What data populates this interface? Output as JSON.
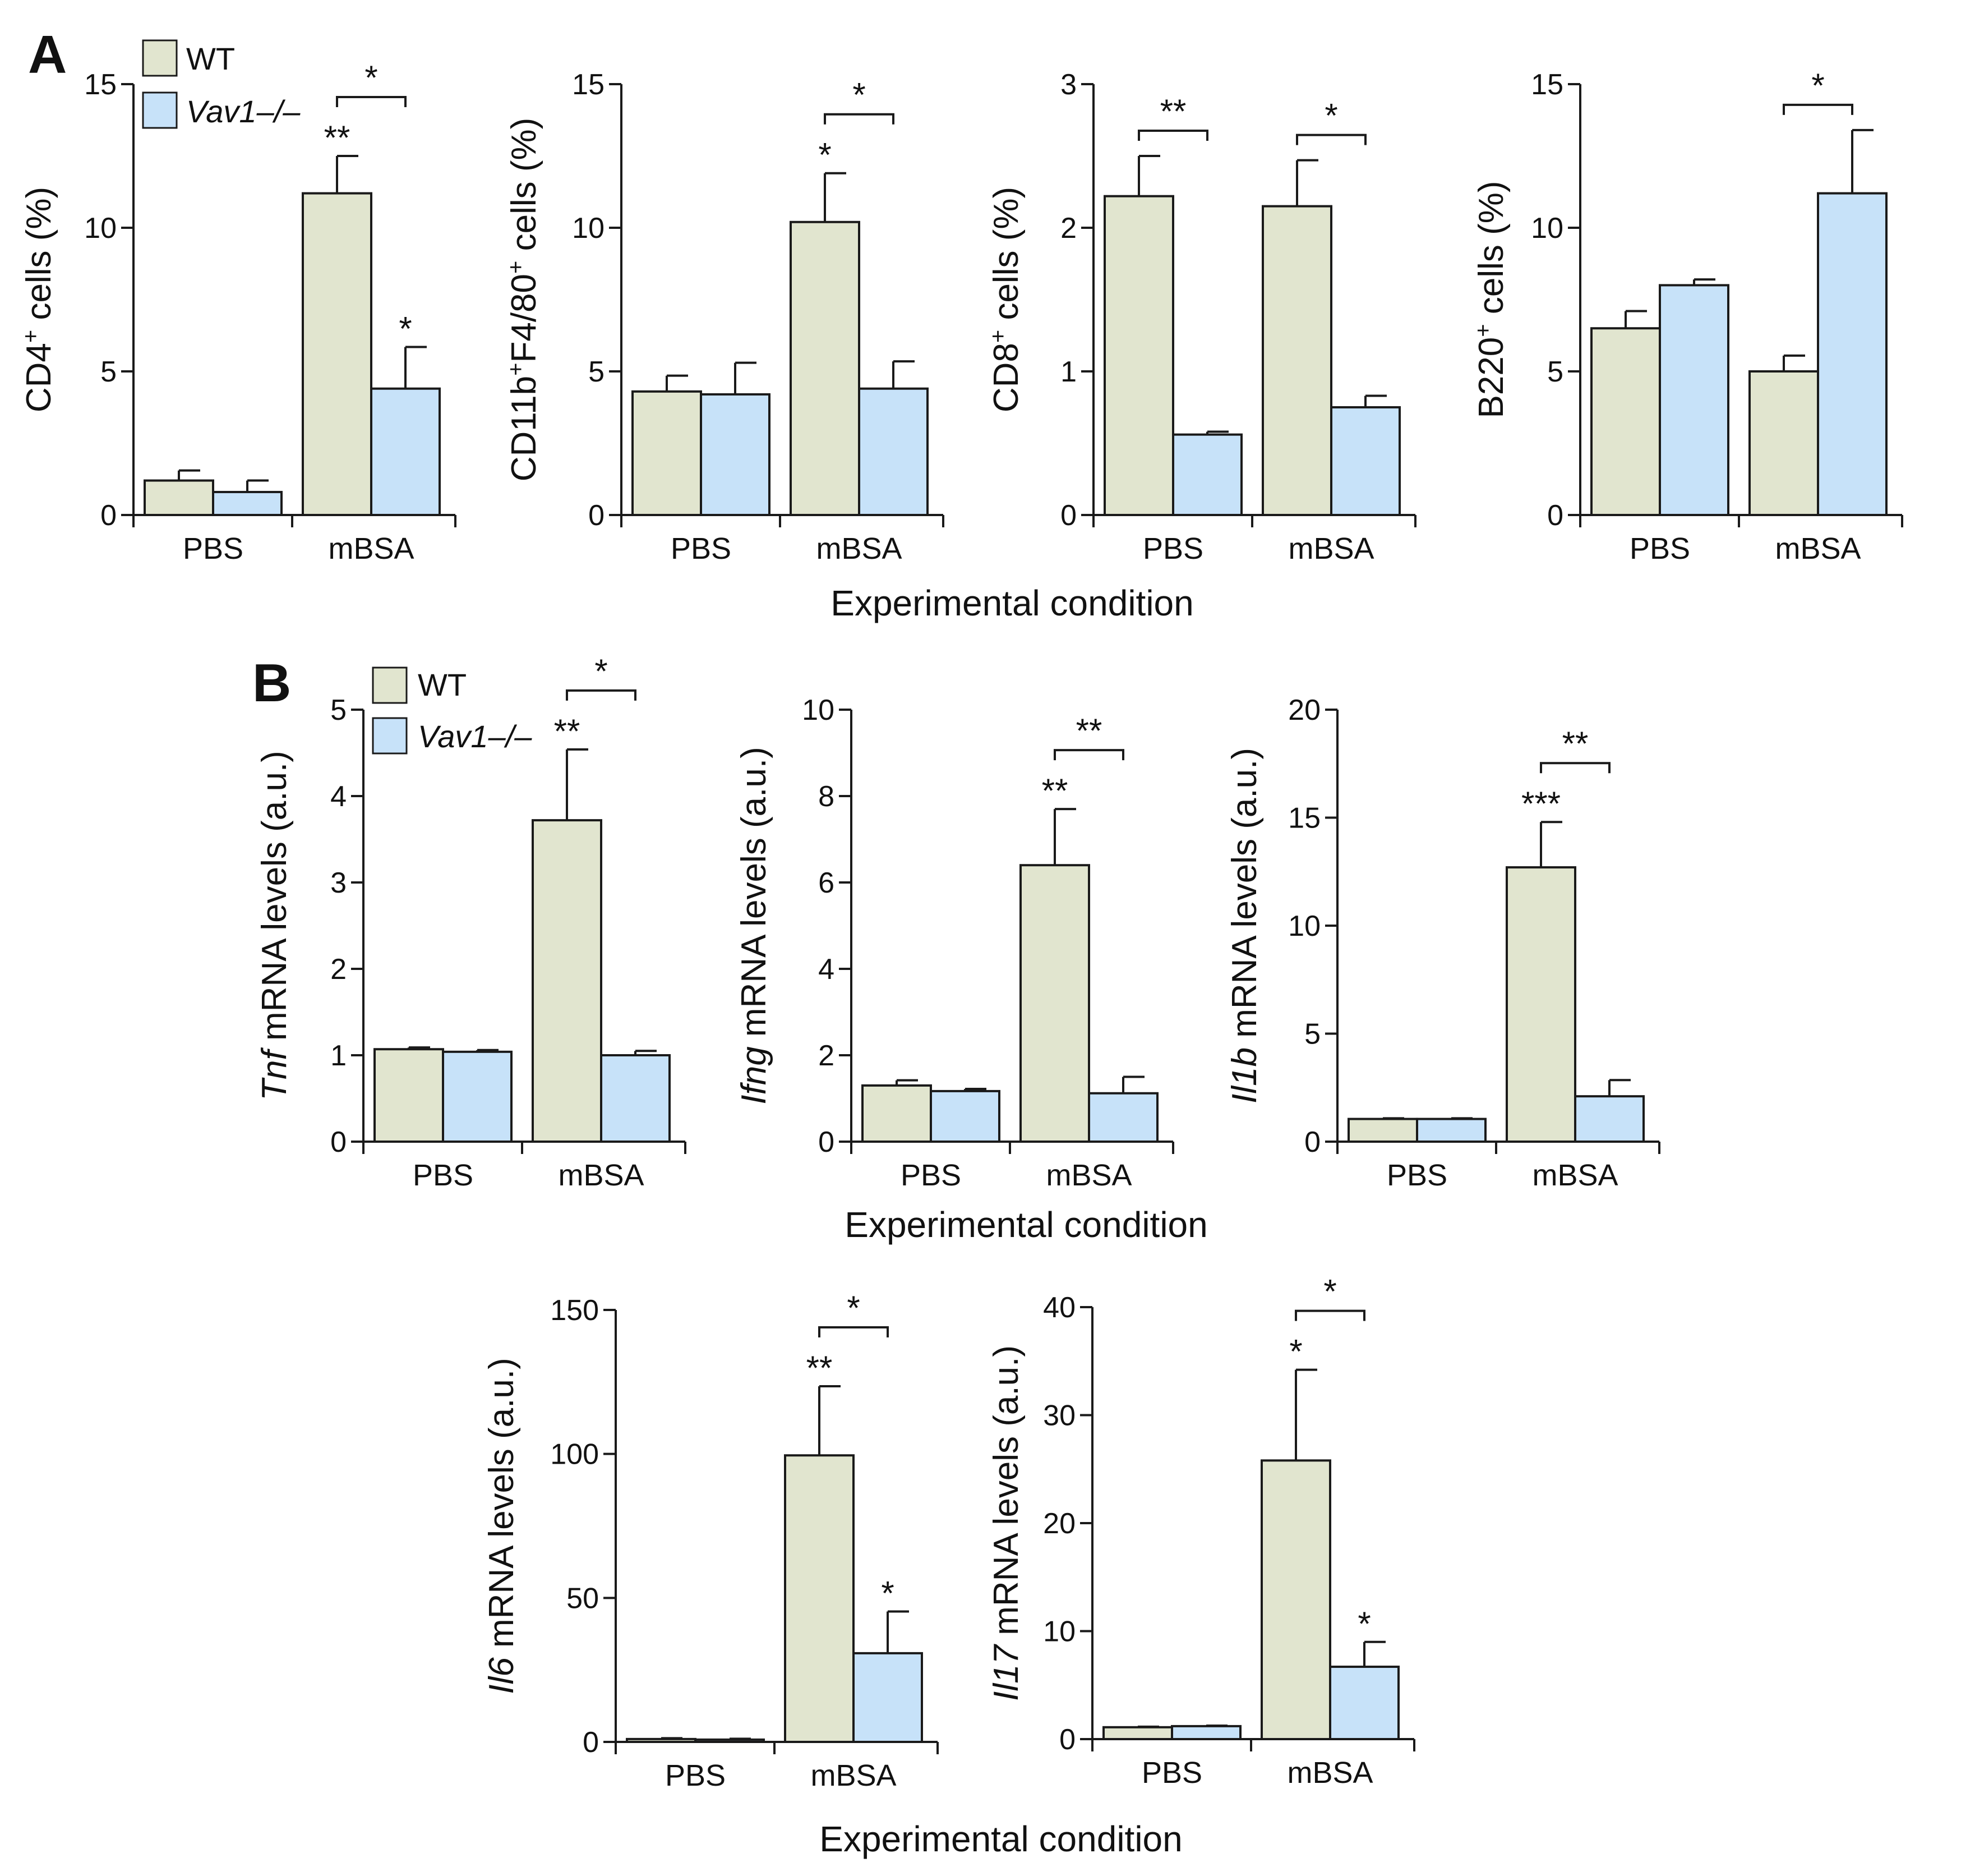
{
  "colors": {
    "wt_fill": "#e1e5cf",
    "ko_fill": "#c7e2f9",
    "stroke": "#1a1a1a"
  },
  "panel_labels": {
    "a": "A",
    "b": "B"
  },
  "legend_a": {
    "wt": "WT",
    "ko": "Vav1–/–"
  },
  "legend_b": {
    "wt": "WT",
    "ko": "Vav1–/–"
  },
  "xlabels": {
    "row1": "Experimental condition",
    "row2": "Experimental condition",
    "row3": "Experimental condition"
  },
  "chart_data": [
    {
      "id": "cd4",
      "type": "bar",
      "ylim": [
        0,
        15
      ],
      "ticks": [
        "0",
        "5",
        "10",
        "15"
      ],
      "ylabel": {
        "pre_italic": "",
        "main": "CD4",
        "sup": "+",
        "rest": " cells (%)"
      },
      "categories": [
        "PBS",
        "mBSA"
      ],
      "series": [
        {
          "name": "WT",
          "values": [
            1.2,
            11.2
          ],
          "errors": [
            0.35,
            1.3
          ],
          "stars": [
            "",
            "**"
          ]
        },
        {
          "name": "Vav1–/–",
          "values": [
            0.8,
            4.4
          ],
          "errors": [
            0.4,
            1.45
          ],
          "stars": [
            "",
            "*"
          ]
        }
      ],
      "brackets": [
        {
          "category": "mBSA",
          "label": "*"
        }
      ]
    },
    {
      "id": "cd11b",
      "type": "bar",
      "ylim": [
        0,
        15
      ],
      "ticks": [
        "0",
        "5",
        "10",
        "15"
      ],
      "ylabel": {
        "pre_italic": "",
        "main": "CD11b",
        "sup": "+",
        "main2": "F4/80",
        "sup2": "+",
        "rest": " cells (%)"
      },
      "categories": [
        "PBS",
        "mBSA"
      ],
      "series": [
        {
          "name": "WT",
          "values": [
            4.3,
            10.2
          ],
          "errors": [
            0.55,
            1.7
          ],
          "stars": [
            "",
            "*"
          ]
        },
        {
          "name": "Vav1–/–",
          "values": [
            4.2,
            4.4
          ],
          "errors": [
            1.1,
            0.95
          ],
          "stars": [
            "",
            ""
          ]
        }
      ],
      "brackets": [
        {
          "category": "mBSA",
          "label": "*"
        }
      ]
    },
    {
      "id": "cd8",
      "type": "bar",
      "ylim": [
        0,
        3
      ],
      "ticks": [
        "0",
        "1",
        "2",
        "3"
      ],
      "ylabel": {
        "pre_italic": "",
        "main": "CD8",
        "sup": "+",
        "rest": " cells (%)"
      },
      "categories": [
        "PBS",
        "mBSA"
      ],
      "series": [
        {
          "name": "WT",
          "values": [
            2.22,
            2.15
          ],
          "errors": [
            0.28,
            0.32
          ],
          "stars": [
            "",
            ""
          ]
        },
        {
          "name": "Vav1–/–",
          "values": [
            0.56,
            0.75
          ],
          "errors": [
            0.02,
            0.08
          ],
          "stars": [
            "",
            ""
          ]
        }
      ],
      "brackets": [
        {
          "category": "PBS",
          "label": "**"
        },
        {
          "category": "mBSA",
          "label": "*"
        }
      ]
    },
    {
      "id": "b220",
      "type": "bar",
      "ylim": [
        0,
        15
      ],
      "ticks": [
        "0",
        "5",
        "10",
        "15"
      ],
      "ylabel": {
        "pre_italic": "",
        "main": "B220",
        "sup": "+",
        "rest": " cells (%)"
      },
      "categories": [
        "PBS",
        "mBSA"
      ],
      "series": [
        {
          "name": "WT",
          "values": [
            6.5,
            5.0
          ],
          "errors": [
            0.6,
            0.55
          ],
          "stars": [
            "",
            ""
          ]
        },
        {
          "name": "Vav1–/–",
          "values": [
            8.0,
            11.2
          ],
          "errors": [
            0.2,
            2.2
          ],
          "stars": [
            "",
            ""
          ]
        }
      ],
      "brackets": [
        {
          "category": "mBSA",
          "label": "*"
        }
      ]
    },
    {
      "id": "tnf",
      "type": "bar",
      "ylim": [
        0,
        5
      ],
      "ticks": [
        "0",
        "1",
        "2",
        "3",
        "4",
        "5"
      ],
      "ylabel": {
        "pre_italic": "Tnf",
        "main": "",
        "sup": "",
        "rest": " mRNA levels (a.u.)"
      },
      "categories": [
        "PBS",
        "mBSA"
      ],
      "series": [
        {
          "name": "WT",
          "values": [
            1.07,
            3.72
          ],
          "errors": [
            0.02,
            0.82
          ],
          "stars": [
            "",
            "**"
          ]
        },
        {
          "name": "Vav1–/–",
          "values": [
            1.04,
            1.0
          ],
          "errors": [
            0.02,
            0.05
          ],
          "stars": [
            "",
            ""
          ]
        }
      ],
      "brackets": [
        {
          "category": "mBSA",
          "label": "*"
        }
      ]
    },
    {
      "id": "ifng",
      "type": "bar",
      "ylim": [
        0,
        10
      ],
      "ticks": [
        "0",
        "2",
        "4",
        "6",
        "8",
        "10"
      ],
      "ylabel": {
        "pre_italic": "Ifng",
        "main": "",
        "sup": "",
        "rest": " mRNA levels (a.u.)"
      },
      "categories": [
        "PBS",
        "mBSA"
      ],
      "series": [
        {
          "name": "WT",
          "values": [
            1.3,
            6.4
          ],
          "errors": [
            0.12,
            1.3
          ],
          "stars": [
            "",
            "**"
          ]
        },
        {
          "name": "Vav1–/–",
          "values": [
            1.17,
            1.12
          ],
          "errors": [
            0.05,
            0.38
          ],
          "stars": [
            "",
            ""
          ]
        }
      ],
      "brackets": [
        {
          "category": "mBSA",
          "label": "**"
        }
      ]
    },
    {
      "id": "il1b",
      "type": "bar",
      "ylim": [
        0,
        20
      ],
      "ticks": [
        "0",
        "5",
        "10",
        "15",
        "20"
      ],
      "ylabel": {
        "pre_italic": "Il1b",
        "main": "",
        "sup": "",
        "rest": " mRNA levels (a.u.)"
      },
      "categories": [
        "PBS",
        "mBSA"
      ],
      "series": [
        {
          "name": "WT",
          "values": [
            1.05,
            12.7
          ],
          "errors": [
            0.03,
            2.1
          ],
          "stars": [
            "",
            "***"
          ]
        },
        {
          "name": "Vav1–/–",
          "values": [
            1.05,
            2.1
          ],
          "errors": [
            0.03,
            0.75
          ],
          "stars": [
            "",
            ""
          ]
        }
      ],
      "brackets": [
        {
          "category": "mBSA",
          "label": "**"
        }
      ]
    },
    {
      "id": "il6",
      "type": "bar",
      "ylim": [
        0,
        150
      ],
      "ticks": [
        "0",
        "50",
        "100",
        "150"
      ],
      "ylabel": {
        "pre_italic": "Il6",
        "main": "",
        "sup": "",
        "rest": " mRNA levels (a.u.)"
      },
      "categories": [
        "PBS",
        "mBSA"
      ],
      "series": [
        {
          "name": "WT",
          "values": [
            1.0,
            99.5
          ],
          "errors": [
            0.3,
            24
          ],
          "stars": [
            "",
            "**"
          ]
        },
        {
          "name": "Vav1–/–",
          "values": [
            0.8,
            30.8
          ],
          "errors": [
            0.3,
            14.5
          ],
          "stars": [
            "",
            "*"
          ]
        }
      ],
      "brackets": [
        {
          "category": "mBSA",
          "label": "*"
        }
      ]
    },
    {
      "id": "il17",
      "type": "bar",
      "ylim": [
        0,
        40
      ],
      "ticks": [
        "0",
        "10",
        "20",
        "30",
        "40"
      ],
      "ylabel": {
        "pre_italic": "Il17",
        "main": "",
        "sup": "",
        "rest": " mRNA levels (a.u.)"
      },
      "categories": [
        "PBS",
        "mBSA"
      ],
      "series": [
        {
          "name": "WT",
          "values": [
            1.1,
            25.8
          ],
          "errors": [
            0.05,
            8.4
          ],
          "stars": [
            "",
            "*"
          ]
        },
        {
          "name": "Vav1–/–",
          "values": [
            1.2,
            6.7
          ],
          "errors": [
            0.05,
            2.3
          ],
          "stars": [
            "",
            "*"
          ]
        }
      ],
      "brackets": [
        {
          "category": "mBSA",
          "label": "*"
        }
      ]
    }
  ]
}
